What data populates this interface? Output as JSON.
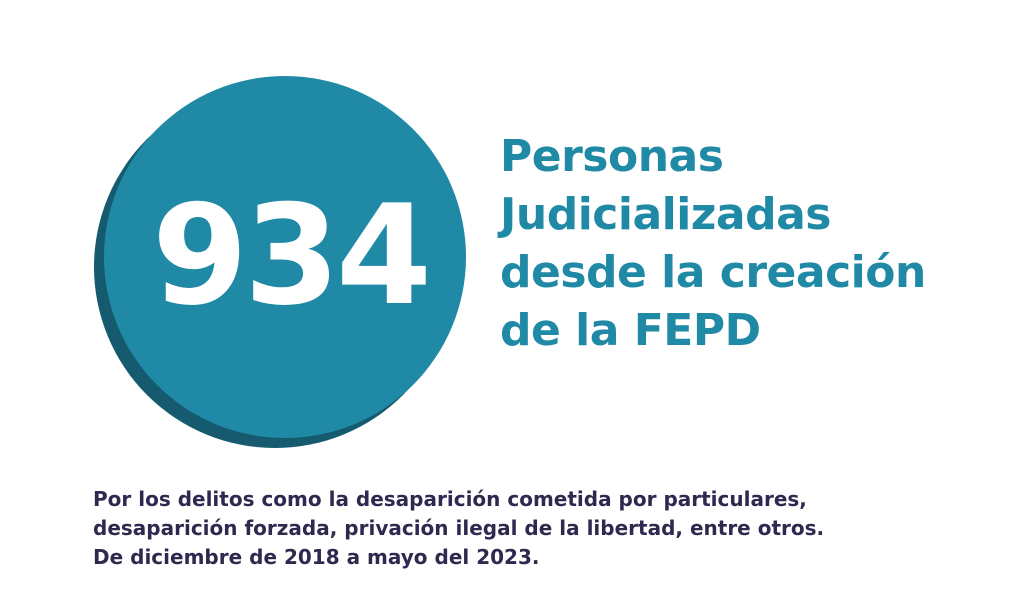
{
  "stat": {
    "number": "934",
    "headline_lines": [
      "Personas",
      "Judicializadas",
      "desde la creación",
      "de la FEPD"
    ]
  },
  "footnote_lines": [
    "Por los delitos como la desaparición cometida por particulares,",
    "desaparición forzada, privación ilegal de la libertad, entre otros.",
    "De diciembre de 2018 a mayo del 2023."
  ],
  "colors": {
    "accent": "#2089a6",
    "accent_shadow": "#155a6f",
    "footnote_text": "#2e2a4f",
    "background": "#ffffff"
  }
}
